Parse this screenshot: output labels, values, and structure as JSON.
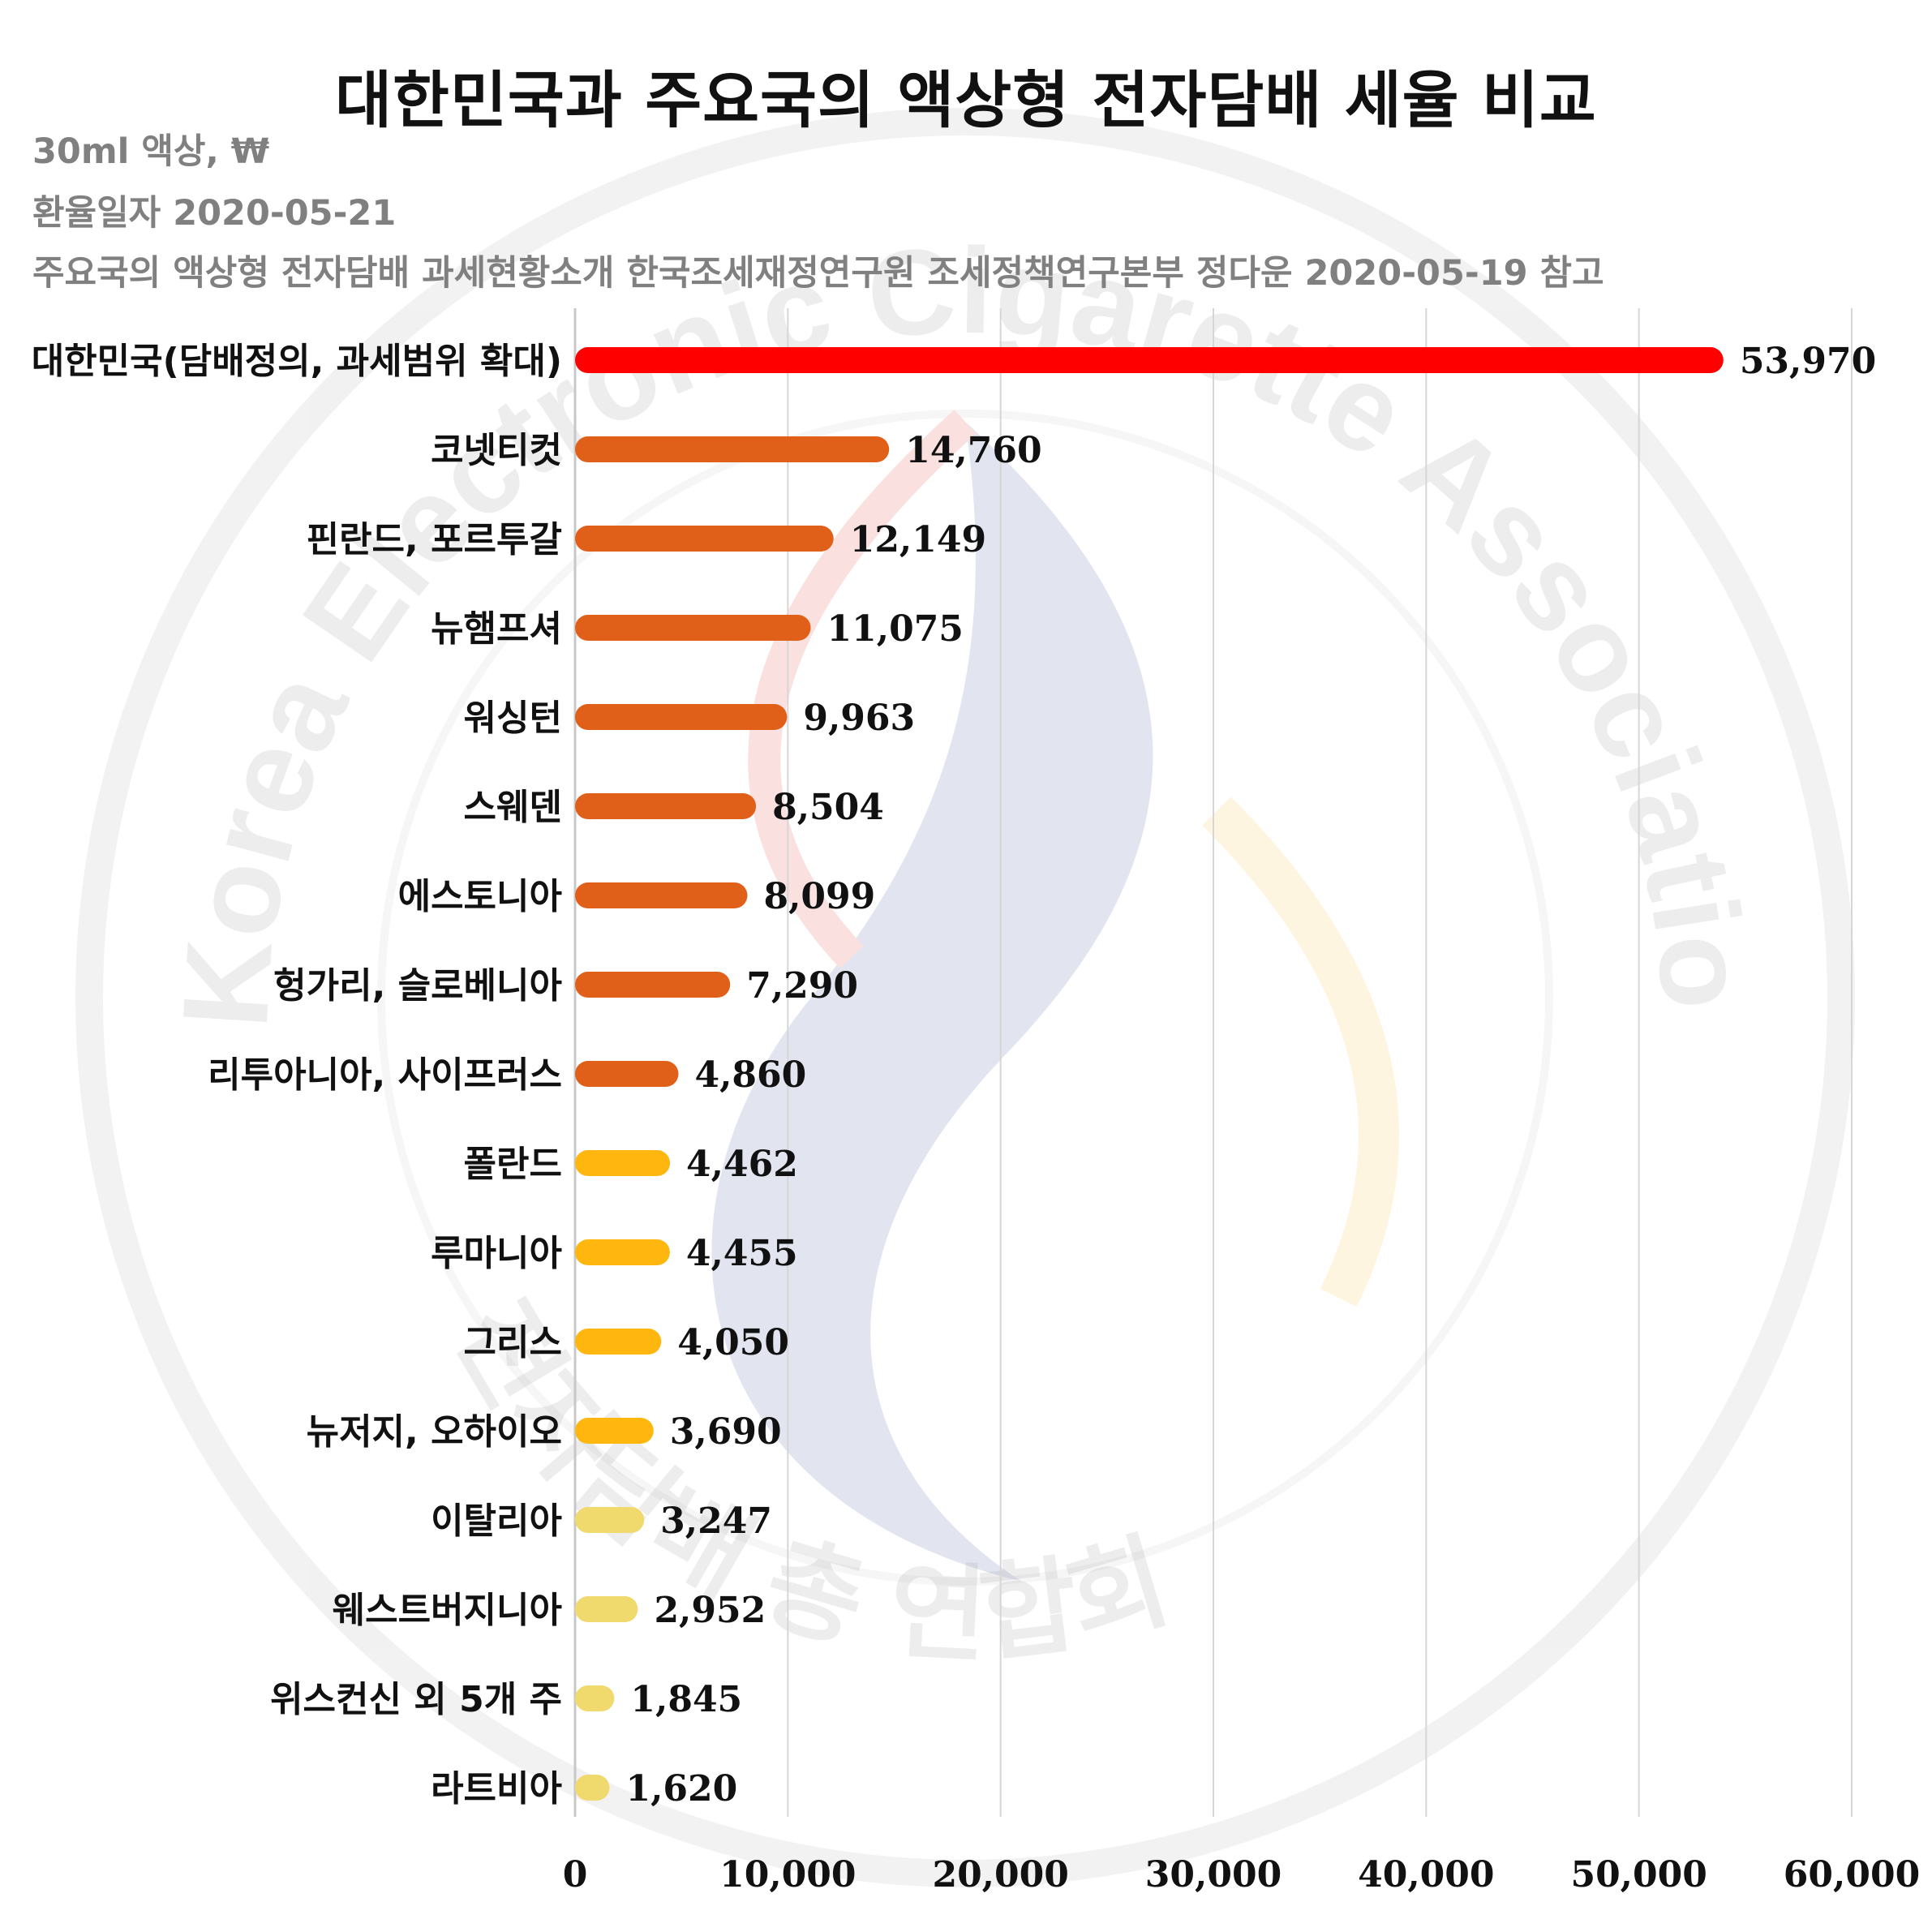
{
  "title": "대한민국과 주요국의 액상형 전자담배 세율 비교",
  "subtitles": [
    "30ml 액상, ₩",
    "환율일자 2020-05-21",
    "주요국의 액상형 전자담배 과세현황소개 한국조세재정연구원 조세정책연구본부 정다운 2020-05-19 참고"
  ],
  "watermark": {
    "outer_text": "Korea Electronic Cigarette Association",
    "inner_text": "전자담배 총 연합회"
  },
  "chart_data": {
    "type": "bar",
    "orientation": "horizontal",
    "title": "대한민국과 주요국의 액상형 전자담배 세율 비교",
    "xlabel": "",
    "ylabel": "",
    "xlim": [
      0,
      60000
    ],
    "ticks": [
      "0",
      "10,000",
      "20,000",
      "30,000",
      "40,000",
      "50,000",
      "60,000"
    ],
    "tick_values": [
      0,
      10000,
      20000,
      30000,
      40000,
      50000,
      60000
    ],
    "grid": "vertical",
    "legend": "none",
    "categories": [
      "대한민국(담배정의, 과세범위 확대)",
      "코넷티컷",
      "핀란드, 포르투갈",
      "뉴햄프셔",
      "워싱턴",
      "스웨덴",
      "에스토니아",
      "헝가리, 슬로베니아",
      "리투아니아, 사이프러스",
      "폴란드",
      "루마니아",
      "그리스",
      "뉴저지, 오하이오",
      "이탈리아",
      "웨스트버지니아",
      "위스컨신 외 5개 주",
      "라트비아"
    ],
    "values": [
      53970,
      14760,
      12149,
      11075,
      9963,
      8504,
      8099,
      7290,
      4860,
      4462,
      4455,
      4050,
      3690,
      3247,
      2952,
      1845,
      1620
    ],
    "value_labels": [
      "53,970",
      "14,760",
      "12,149",
      "11,075",
      "9,963",
      "8,504",
      "8,099",
      "7,290",
      "4,860",
      "4,462",
      "4,455",
      "4,050",
      "3,690",
      "3,247",
      "2,952",
      "1,845",
      "1,620"
    ],
    "colors": [
      "#ff0000",
      "#e0601a",
      "#e0601a",
      "#e0601a",
      "#e0601a",
      "#e0601a",
      "#e0601a",
      "#e0601a",
      "#e0601a",
      "#ffb60f",
      "#ffb60f",
      "#ffb60f",
      "#ffb60f",
      "#f0da6e",
      "#f0da6e",
      "#f0da6e",
      "#f0da6e"
    ]
  }
}
